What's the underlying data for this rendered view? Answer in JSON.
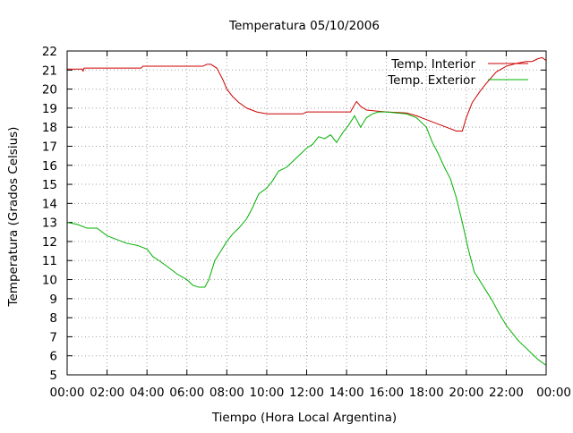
{
  "chart_data": {
    "type": "line",
    "title": "Temperatura 05/10/2006",
    "xlabel": "Tiempo (Hora Local Argentina)",
    "ylabel": "Temperatura (Grados Celsius)",
    "xlim": [
      0,
      24
    ],
    "ylim": [
      5,
      22
    ],
    "x_ticks": [
      0,
      2,
      4,
      6,
      8,
      10,
      12,
      14,
      16,
      18,
      20,
      22,
      24
    ],
    "x_tick_labels": [
      "00:00",
      "02:00",
      "04:00",
      "06:00",
      "08:00",
      "10:00",
      "12:00",
      "14:00",
      "16:00",
      "18:00",
      "20:00",
      "22:00",
      "00:00"
    ],
    "y_ticks": [
      5,
      6,
      7,
      8,
      9,
      10,
      11,
      12,
      13,
      14,
      15,
      16,
      17,
      18,
      19,
      20,
      21,
      22
    ],
    "y_tick_labels": [
      "5",
      "6",
      "7",
      "8",
      "9",
      "10",
      "11",
      "12",
      "13",
      "14",
      "15",
      "16",
      "17",
      "18",
      "19",
      "20",
      "21",
      "22"
    ],
    "grid": true,
    "legend_position": "top-right",
    "series": [
      {
        "name": "Temp. Interior",
        "color": "#cc0000",
        "x": [
          0,
          0.5,
          0.75,
          0.8,
          0.85,
          1,
          2,
          3,
          3.7,
          3.8,
          5,
          6,
          6.8,
          7.0,
          7.2,
          7.5,
          7.8,
          8.0,
          8.3,
          8.6,
          9.0,
          9.5,
          10.0,
          11.0,
          11.8,
          12.0,
          13.0,
          14.0,
          14.2,
          14.3,
          14.5,
          14.7,
          15.0,
          15.5,
          16.0,
          17.0,
          17.5,
          18.0,
          18.5,
          19.0,
          19.5,
          19.8,
          20.0,
          20.3,
          20.7,
          21.0,
          21.5,
          22.0,
          22.5,
          23.0,
          23.3,
          23.6,
          23.8,
          24.0
        ],
        "values": [
          21.05,
          21.05,
          21.05,
          20.95,
          21.1,
          21.1,
          21.1,
          21.1,
          21.1,
          21.2,
          21.2,
          21.2,
          21.2,
          21.3,
          21.3,
          21.1,
          20.5,
          20.0,
          19.6,
          19.3,
          19.0,
          18.8,
          18.7,
          18.7,
          18.7,
          18.8,
          18.8,
          18.8,
          18.8,
          19.0,
          19.35,
          19.1,
          18.9,
          18.85,
          18.8,
          18.75,
          18.6,
          18.4,
          18.2,
          18.0,
          17.8,
          17.8,
          18.5,
          19.3,
          19.9,
          20.3,
          20.9,
          21.2,
          21.35,
          21.45,
          21.45,
          21.6,
          21.65,
          21.5
        ]
      },
      {
        "name": "Temp. Exterior",
        "color": "#00b000",
        "x": [
          0,
          0.5,
          1,
          1.5,
          2,
          2.5,
          3,
          3.5,
          4,
          4.3,
          4.6,
          5,
          5.5,
          6,
          6.3,
          6.6,
          6.9,
          7.1,
          7.4,
          7.7,
          8.0,
          8.3,
          8.6,
          9.0,
          9.3,
          9.6,
          10.0,
          10.3,
          10.6,
          11.0,
          11.3,
          11.6,
          12.0,
          12.3,
          12.6,
          12.9,
          13.2,
          13.5,
          13.8,
          14.1,
          14.4,
          14.7,
          15.0,
          15.3,
          15.6,
          16.0,
          16.5,
          17.0,
          17.5,
          18.0,
          18.3,
          18.6,
          18.9,
          19.2,
          19.5,
          19.8,
          20.1,
          20.4,
          20.7,
          21.0,
          21.3,
          21.6,
          22.0,
          22.3,
          22.6,
          23.0,
          23.3,
          23.6,
          24.0
        ],
        "values": [
          13.0,
          12.9,
          12.7,
          12.7,
          12.3,
          12.1,
          11.9,
          11.8,
          11.6,
          11.2,
          11.0,
          10.7,
          10.3,
          10.0,
          9.7,
          9.6,
          9.6,
          10.0,
          11.0,
          11.5,
          12.0,
          12.4,
          12.7,
          13.2,
          13.8,
          14.5,
          14.8,
          15.2,
          15.7,
          15.9,
          16.2,
          16.5,
          16.9,
          17.1,
          17.5,
          17.4,
          17.6,
          17.2,
          17.7,
          18.1,
          18.6,
          18.0,
          18.5,
          18.7,
          18.8,
          18.8,
          18.75,
          18.7,
          18.5,
          18.0,
          17.2,
          16.6,
          15.9,
          15.3,
          14.3,
          13.0,
          11.6,
          10.4,
          9.9,
          9.4,
          8.9,
          8.3,
          7.6,
          7.2,
          6.8,
          6.4,
          6.1,
          5.8,
          5.5
        ]
      }
    ]
  }
}
